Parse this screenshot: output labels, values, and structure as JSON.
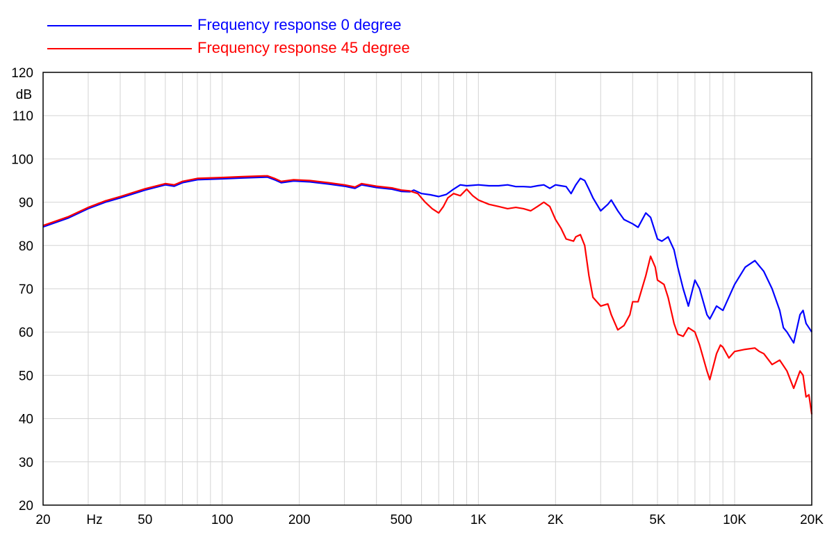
{
  "chart_data": {
    "type": "line",
    "title": "",
    "xlabel": "Hz",
    "ylabel": "dB",
    "x_scale": "log",
    "xlim": [
      20,
      20000
    ],
    "ylim": [
      20,
      120
    ],
    "grid": true,
    "legend_position": "top-left",
    "y_ticks": [
      20,
      30,
      40,
      50,
      60,
      70,
      80,
      90,
      100,
      110,
      120
    ],
    "x_tick_labels": [
      {
        "value": 20,
        "label": "20"
      },
      {
        "value": 50,
        "label": "50"
      },
      {
        "value": 100,
        "label": "100"
      },
      {
        "value": 200,
        "label": "200"
      },
      {
        "value": 500,
        "label": "500"
      },
      {
        "value": 1000,
        "label": "1K"
      },
      {
        "value": 2000,
        "label": "2K"
      },
      {
        "value": 5000,
        "label": "5K"
      },
      {
        "value": 10000,
        "label": "10K"
      },
      {
        "value": 20000,
        "label": "20K"
      }
    ],
    "series": [
      {
        "name": "Frequency response 0 degree",
        "color": "#0000ff",
        "points": [
          [
            20,
            84.3
          ],
          [
            25,
            86.3
          ],
          [
            30,
            88.5
          ],
          [
            35,
            90
          ],
          [
            40,
            91
          ],
          [
            50,
            92.8
          ],
          [
            60,
            94
          ],
          [
            65,
            93.7
          ],
          [
            70,
            94.5
          ],
          [
            80,
            95.2
          ],
          [
            100,
            95.4
          ],
          [
            120,
            95.6
          ],
          [
            150,
            95.8
          ],
          [
            160,
            95.2
          ],
          [
            170,
            94.5
          ],
          [
            190,
            94.9
          ],
          [
            220,
            94.7
          ],
          [
            260,
            94.2
          ],
          [
            300,
            93.7
          ],
          [
            330,
            93.2
          ],
          [
            350,
            94
          ],
          [
            400,
            93.4
          ],
          [
            460,
            93
          ],
          [
            500,
            92.5
          ],
          [
            540,
            92.4
          ],
          [
            560,
            92.8
          ],
          [
            600,
            92
          ],
          [
            650,
            91.7
          ],
          [
            700,
            91.3
          ],
          [
            750,
            91.8
          ],
          [
            800,
            93
          ],
          [
            850,
            94
          ],
          [
            900,
            93.8
          ],
          [
            1000,
            94
          ],
          [
            1100,
            93.8
          ],
          [
            1200,
            93.8
          ],
          [
            1300,
            94
          ],
          [
            1400,
            93.6
          ],
          [
            1500,
            93.6
          ],
          [
            1600,
            93.5
          ],
          [
            1700,
            93.8
          ],
          [
            1800,
            94
          ],
          [
            1900,
            93.2
          ],
          [
            2000,
            94
          ],
          [
            2100,
            93.8
          ],
          [
            2200,
            93.6
          ],
          [
            2300,
            92
          ],
          [
            2400,
            94
          ],
          [
            2500,
            95.5
          ],
          [
            2600,
            95
          ],
          [
            2700,
            93
          ],
          [
            2800,
            91
          ],
          [
            3000,
            88
          ],
          [
            3200,
            89.5
          ],
          [
            3300,
            90.5
          ],
          [
            3500,
            88
          ],
          [
            3700,
            86
          ],
          [
            4000,
            85
          ],
          [
            4200,
            84.2
          ],
          [
            4500,
            87.5
          ],
          [
            4700,
            86.5
          ],
          [
            5000,
            81.5
          ],
          [
            5200,
            81
          ],
          [
            5500,
            82
          ],
          [
            5800,
            79
          ],
          [
            6000,
            75
          ],
          [
            6300,
            70
          ],
          [
            6600,
            66
          ],
          [
            7000,
            72
          ],
          [
            7300,
            70
          ],
          [
            7800,
            64
          ],
          [
            8000,
            63
          ],
          [
            8500,
            66
          ],
          [
            9000,
            65
          ],
          [
            10000,
            71
          ],
          [
            11000,
            75
          ],
          [
            12000,
            76.5
          ],
          [
            13000,
            74
          ],
          [
            14000,
            70
          ],
          [
            15000,
            65
          ],
          [
            15500,
            61
          ],
          [
            16000,
            60
          ],
          [
            17000,
            57.5
          ],
          [
            18000,
            64
          ],
          [
            18500,
            65
          ],
          [
            19000,
            62
          ],
          [
            20000,
            60
          ]
        ]
      },
      {
        "name": "Frequency response 45 degree",
        "color": "#ff0000",
        "points": [
          [
            20,
            84.6
          ],
          [
            25,
            86.6
          ],
          [
            30,
            88.8
          ],
          [
            35,
            90.3
          ],
          [
            40,
            91.3
          ],
          [
            50,
            93.1
          ],
          [
            60,
            94.3
          ],
          [
            65,
            94
          ],
          [
            70,
            94.8
          ],
          [
            80,
            95.5
          ],
          [
            100,
            95.7
          ],
          [
            120,
            95.9
          ],
          [
            150,
            96.1
          ],
          [
            160,
            95.5
          ],
          [
            170,
            94.8
          ],
          [
            190,
            95.2
          ],
          [
            220,
            95
          ],
          [
            260,
            94.5
          ],
          [
            300,
            94
          ],
          [
            330,
            93.5
          ],
          [
            350,
            94.3
          ],
          [
            400,
            93.7
          ],
          [
            460,
            93.3
          ],
          [
            500,
            92.8
          ],
          [
            540,
            92.6
          ],
          [
            580,
            92
          ],
          [
            620,
            90
          ],
          [
            660,
            88.5
          ],
          [
            700,
            87.5
          ],
          [
            730,
            89
          ],
          [
            760,
            91
          ],
          [
            800,
            92
          ],
          [
            850,
            91.5
          ],
          [
            900,
            93
          ],
          [
            950,
            91.5
          ],
          [
            1000,
            90.5
          ],
          [
            1100,
            89.5
          ],
          [
            1200,
            89
          ],
          [
            1300,
            88.5
          ],
          [
            1400,
            88.8
          ],
          [
            1500,
            88.5
          ],
          [
            1600,
            88
          ],
          [
            1700,
            89
          ],
          [
            1800,
            90
          ],
          [
            1900,
            89
          ],
          [
            2000,
            86
          ],
          [
            2100,
            84
          ],
          [
            2200,
            81.5
          ],
          [
            2350,
            81
          ],
          [
            2400,
            82
          ],
          [
            2500,
            82.5
          ],
          [
            2600,
            80
          ],
          [
            2700,
            73
          ],
          [
            2800,
            68
          ],
          [
            3000,
            66
          ],
          [
            3200,
            66.5
          ],
          [
            3300,
            64
          ],
          [
            3500,
            60.5
          ],
          [
            3700,
            61.5
          ],
          [
            3900,
            64
          ],
          [
            4000,
            67
          ],
          [
            4200,
            67
          ],
          [
            4500,
            73
          ],
          [
            4700,
            77.5
          ],
          [
            4900,
            75
          ],
          [
            5000,
            72
          ],
          [
            5300,
            71
          ],
          [
            5500,
            68
          ],
          [
            5800,
            62
          ],
          [
            6000,
            59.5
          ],
          [
            6300,
            59
          ],
          [
            6600,
            61
          ],
          [
            7000,
            60
          ],
          [
            7300,
            57
          ],
          [
            7800,
            51
          ],
          [
            8000,
            49
          ],
          [
            8500,
            55
          ],
          [
            8800,
            57
          ],
          [
            9000,
            56.5
          ],
          [
            9500,
            54
          ],
          [
            10000,
            55.5
          ],
          [
            11000,
            56
          ],
          [
            12000,
            56.3
          ],
          [
            12500,
            55.5
          ],
          [
            13000,
            55
          ],
          [
            14000,
            52.5
          ],
          [
            15000,
            53.5
          ],
          [
            16000,
            51
          ],
          [
            17000,
            47
          ],
          [
            18000,
            51
          ],
          [
            18500,
            50
          ],
          [
            19000,
            45
          ],
          [
            19500,
            45.5
          ],
          [
            20000,
            41
          ]
        ]
      }
    ]
  }
}
